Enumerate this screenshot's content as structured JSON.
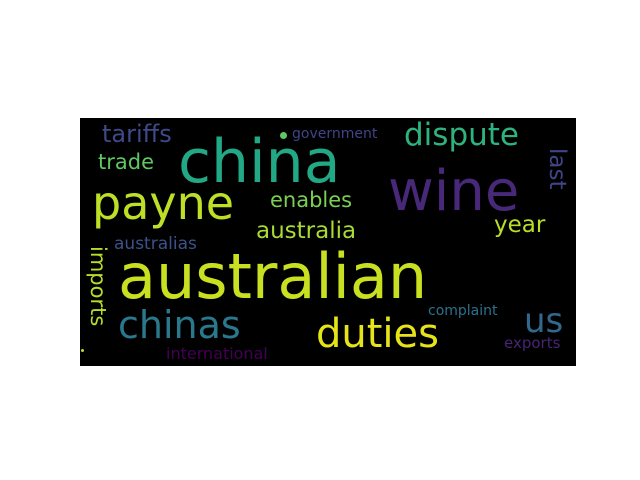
{
  "wordcloud": {
    "words": [
      {
        "id": "w-australian",
        "text": "australian",
        "color": "#c8e020"
      },
      {
        "id": "w-china",
        "text": "china",
        "color": "#22a884"
      },
      {
        "id": "w-wine",
        "text": "wine",
        "color": "#482878"
      },
      {
        "id": "w-payne",
        "text": "payne",
        "color": "#bddf26"
      },
      {
        "id": "w-chinas",
        "text": "chinas",
        "color": "#2a788e"
      },
      {
        "id": "w-duties",
        "text": "duties",
        "color": "#e5e419"
      },
      {
        "id": "w-dispute",
        "text": "dispute",
        "color": "#2eb37c"
      },
      {
        "id": "w-tariffs",
        "text": "tariffs",
        "color": "#3e4a89"
      },
      {
        "id": "w-trade",
        "text": "trade",
        "color": "#5ec962"
      },
      {
        "id": "w-enables",
        "text": "enables",
        "color": "#7ad151"
      },
      {
        "id": "w-australia",
        "text": "australia",
        "color": "#a8db34"
      },
      {
        "id": "w-year",
        "text": "year",
        "color": "#bade28"
      },
      {
        "id": "w-last",
        "text": "last",
        "color": "#414487"
      },
      {
        "id": "w-imports",
        "text": "imports",
        "color": "#b5de2b"
      },
      {
        "id": "w-australias",
        "text": "australias",
        "color": "#3b528b"
      },
      {
        "id": "w-us",
        "text": "us",
        "color": "#31688e"
      },
      {
        "id": "w-government",
        "text": "government",
        "color": "#414487"
      },
      {
        "id": "w-complaint",
        "text": "complaint",
        "color": "#2c728e"
      },
      {
        "id": "w-international",
        "text": "international",
        "color": "#440154"
      },
      {
        "id": "w-exports",
        "text": "exports",
        "color": "#482475"
      }
    ]
  }
}
